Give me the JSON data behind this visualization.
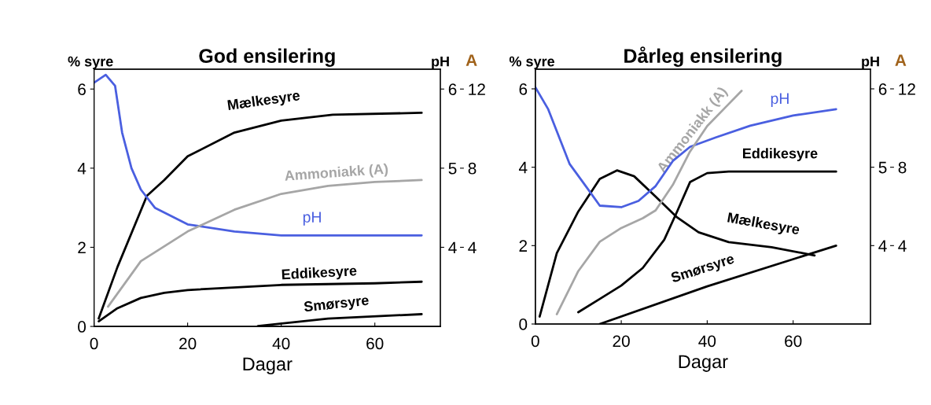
{
  "chart_data": [
    {
      "type": "line",
      "title": "God ensilering",
      "xlabel": "Dagar",
      "ylabel": "% syre",
      "y2label": "pH",
      "y3label": "A",
      "xlim": [
        0,
        74
      ],
      "xticks": [
        0,
        20,
        40,
        60
      ],
      "ylim": [
        0,
        6.5
      ],
      "yticks": [
        0,
        2,
        4,
        6
      ],
      "y2lim": [
        3,
        6.25
      ],
      "y2ticks": [
        4,
        5,
        6
      ],
      "y3lim": [
        0,
        13
      ],
      "y3ticks": [
        4,
        8,
        12
      ],
      "series": [
        {
          "name": "Mælkesyre",
          "color": "#000000",
          "x": [
            1,
            5,
            11.3,
            15,
            20,
            30,
            40,
            51,
            70
          ],
          "values": [
            0.2,
            1.5,
            3.3,
            3.7,
            4.3,
            4.9,
            5.2,
            5.35,
            5.4
          ]
        },
        {
          "name": "Ammoniakk (A)",
          "color": "#a6a6a6",
          "axis": "y3",
          "x": [
            3,
            10,
            20,
            30,
            40,
            50,
            60,
            70
          ],
          "values": [
            1.0,
            3.3,
            4.8,
            5.9,
            6.7,
            7.1,
            7.3,
            7.4
          ]
        },
        {
          "name": "pH",
          "color": "#4a5fe0",
          "axis": "y2",
          "x": [
            0,
            2.5,
            4.5,
            6,
            8,
            10,
            13,
            20,
            30,
            40,
            50,
            70
          ],
          "values": [
            6.08,
            6.18,
            6.04,
            5.45,
            5.0,
            4.73,
            4.5,
            4.29,
            4.2,
            4.15,
            4.15,
            4.15
          ]
        },
        {
          "name": "Eddikesyre",
          "color": "#000000",
          "x": [
            1,
            5,
            10,
            15,
            20,
            40,
            60,
            70
          ],
          "values": [
            0.13,
            0.46,
            0.72,
            0.85,
            0.92,
            1.05,
            1.09,
            1.13
          ]
        },
        {
          "name": "Smørsyre",
          "color": "#000000",
          "x": [
            35,
            50,
            70
          ],
          "values": [
            0.01,
            0.2,
            0.31
          ]
        }
      ]
    },
    {
      "type": "line",
      "title": "Dårleg ensilering",
      "xlabel": "Dagar",
      "ylabel": "% syre",
      "y2label": "pH",
      "y3label": "A",
      "xlim": [
        0,
        78
      ],
      "xticks": [
        0,
        20,
        40,
        60
      ],
      "ylim": [
        0,
        6.5
      ],
      "yticks": [
        0,
        2,
        4,
        6
      ],
      "y2lim": [
        3,
        6.25
      ],
      "y2ticks": [
        4,
        5,
        6
      ],
      "y3lim": [
        0,
        13
      ],
      "y3ticks": [
        4,
        8,
        12
      ],
      "series": [
        {
          "name": "Ammoniakk (A)",
          "color": "#a6a6a6",
          "axis": "y3",
          "x": [
            5,
            10,
            15,
            20,
            25,
            28,
            32,
            36,
            40,
            44,
            48
          ],
          "values": [
            0.5,
            2.7,
            4.2,
            4.9,
            5.4,
            5.8,
            7.1,
            8.8,
            10.1,
            11.0,
            11.9
          ]
        },
        {
          "name": "pH",
          "color": "#4a5fe0",
          "axis": "y2",
          "x": [
            0,
            3,
            8,
            12,
            15,
            20,
            24,
            28,
            32,
            36,
            42,
            50,
            60,
            70
          ],
          "values": [
            6.02,
            5.74,
            5.04,
            4.74,
            4.51,
            4.49,
            4.57,
            4.76,
            5.08,
            5.26,
            5.38,
            5.53,
            5.66,
            5.74
          ]
        },
        {
          "name": "Eddikesyre",
          "color": "#000000",
          "x": [
            10,
            15,
            20,
            25,
            30,
            33,
            36,
            40,
            45,
            70
          ],
          "values": [
            0.3,
            0.64,
            0.98,
            1.43,
            2.15,
            2.87,
            3.62,
            3.85,
            3.89,
            3.89
          ]
        },
        {
          "name": "Mælkesyre",
          "color": "#000000",
          "x": [
            1,
            5,
            10,
            15,
            19,
            23,
            28,
            33,
            38,
            45,
            55,
            65
          ],
          "values": [
            0.19,
            1.81,
            2.87,
            3.7,
            3.92,
            3.77,
            3.25,
            2.72,
            2.34,
            2.09,
            1.96,
            1.75
          ]
        },
        {
          "name": "Smørsyre",
          "color": "#000000",
          "x": [
            15,
            40,
            70
          ],
          "values": [
            0,
            0.96,
            2.0
          ]
        }
      ]
    }
  ]
}
